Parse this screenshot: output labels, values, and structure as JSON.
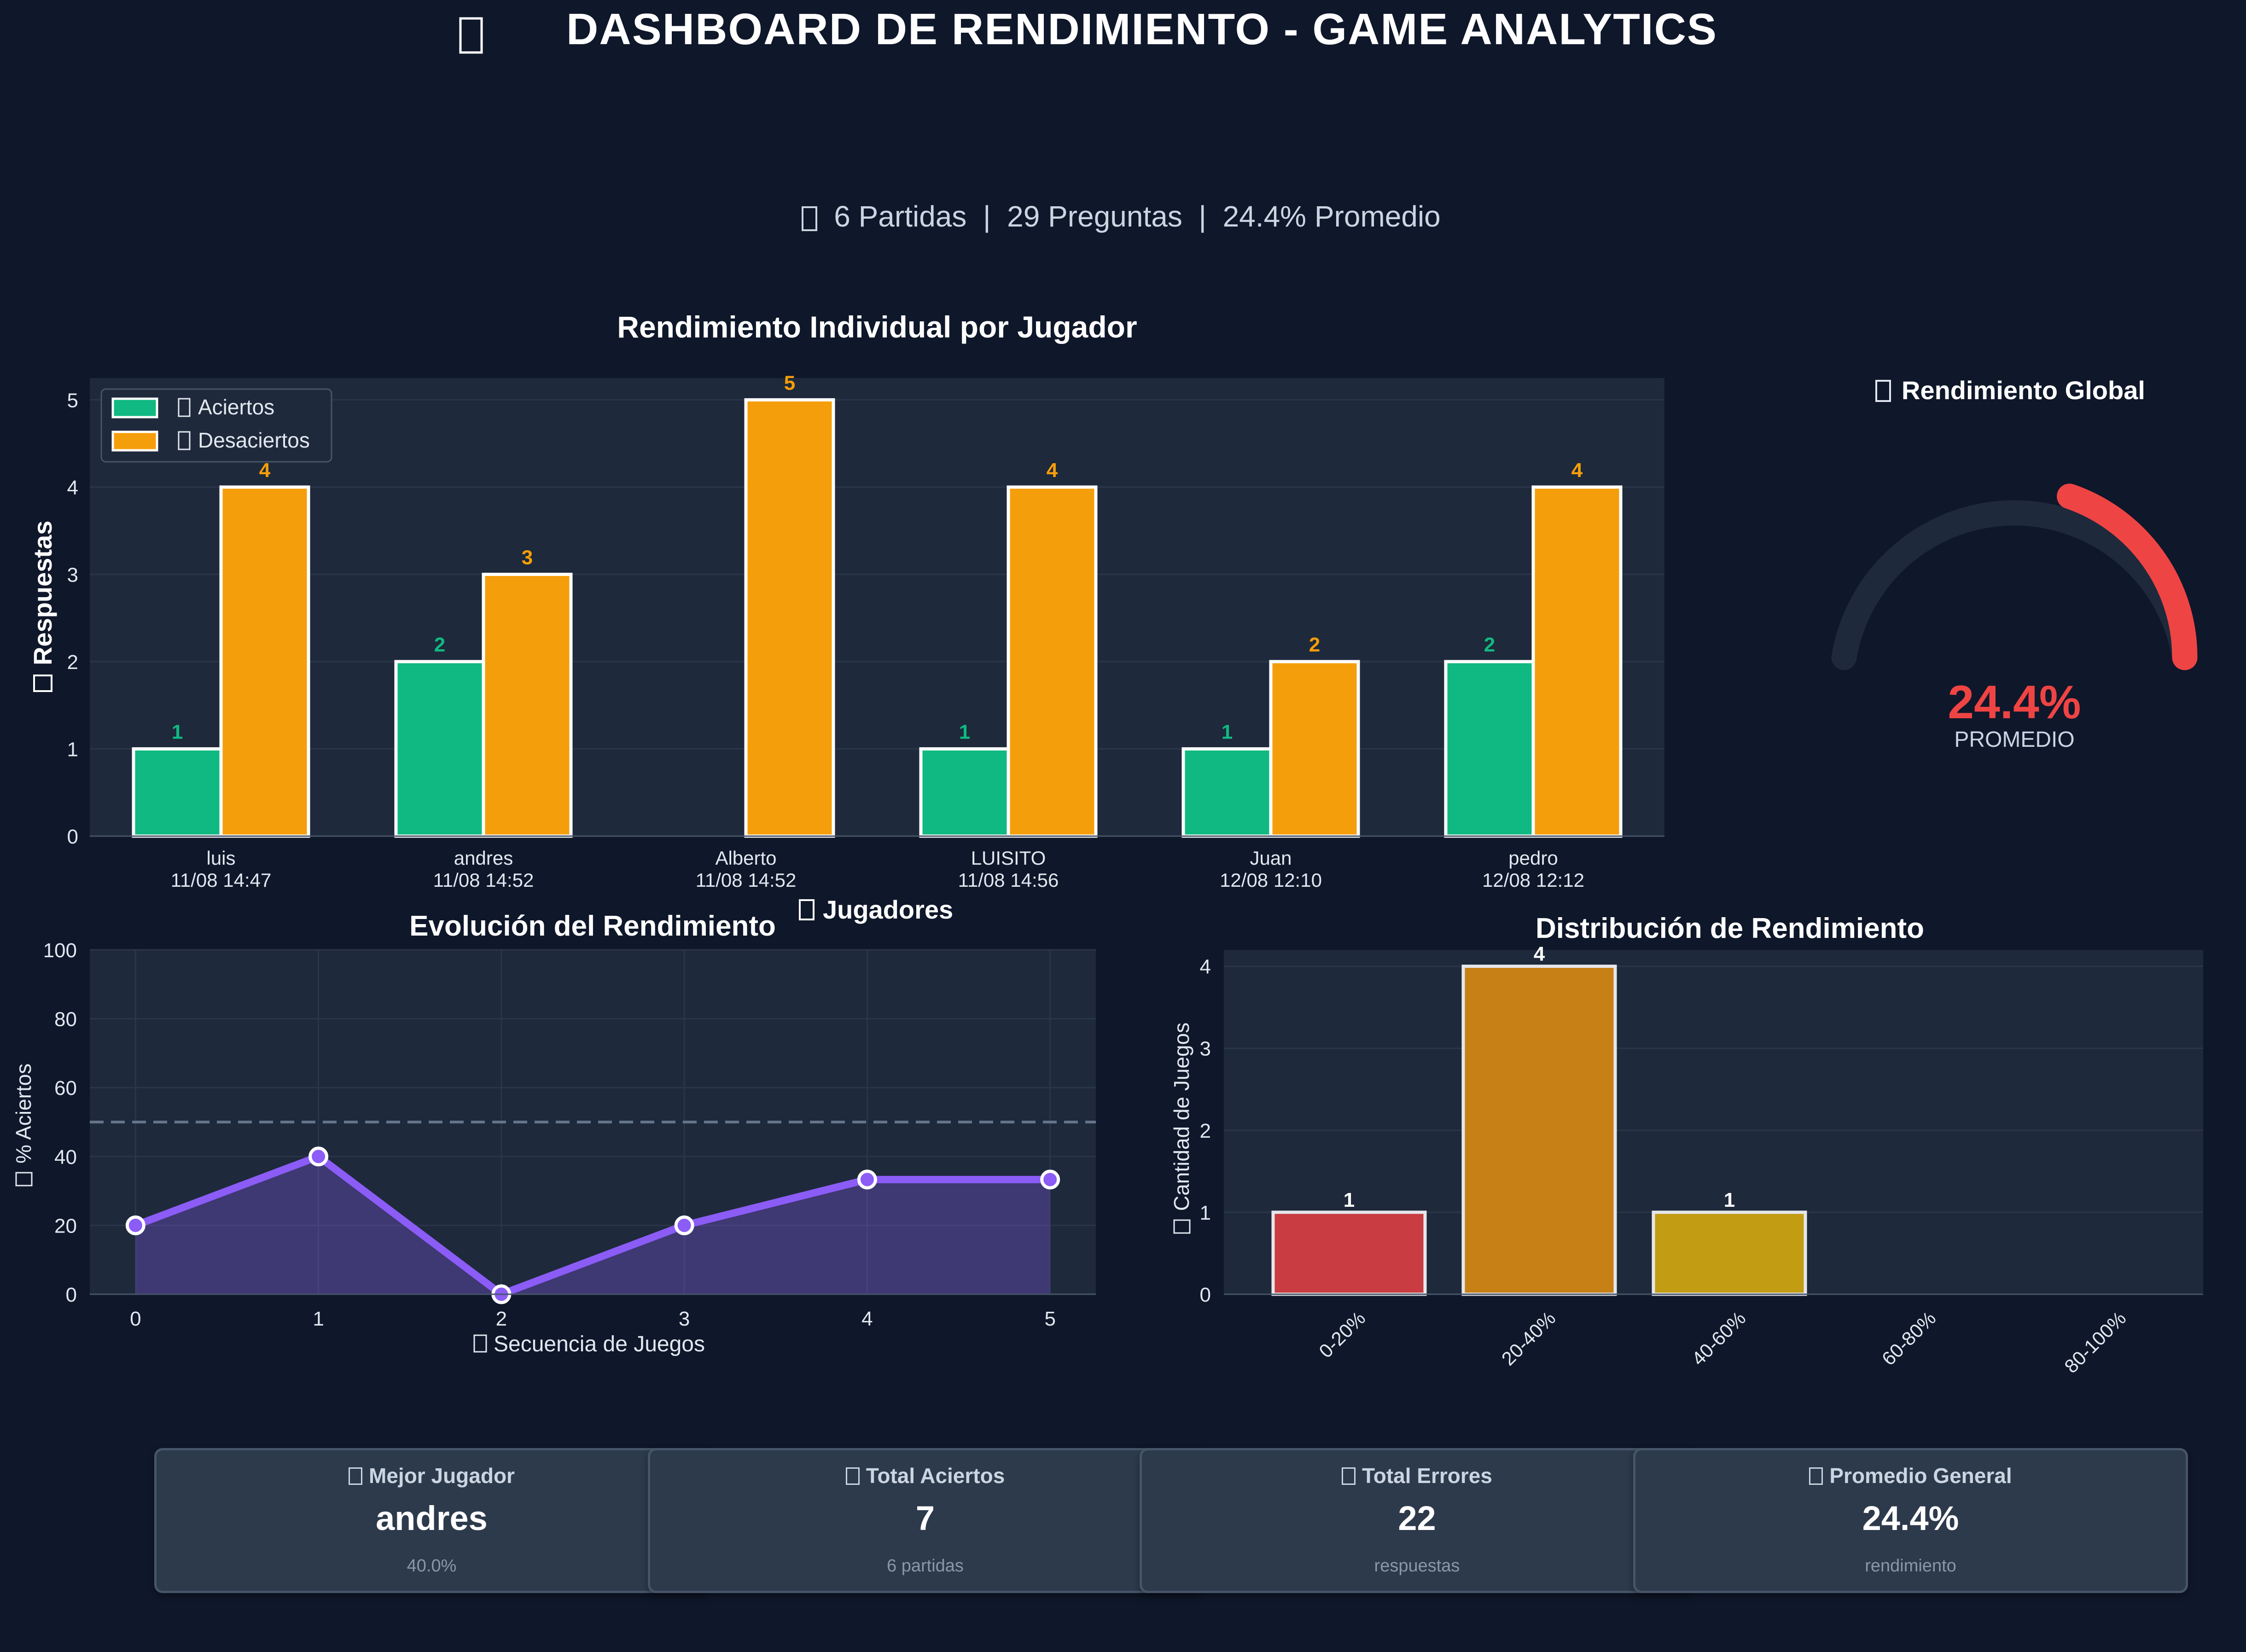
{
  "header": {
    "title": "DASHBOARD DE RENDIMIENTO - GAME ANALYTICS",
    "stats_line": "6 Partidas  |  29 Preguntas  |  24.4% Promedio"
  },
  "colors": {
    "background": "#0f172a",
    "panel": "#1e293b",
    "aciertos": "#10b981",
    "desaciertos": "#f59e0b",
    "line": "#8b5cf6",
    "gauge_low": "#ef4444",
    "dist_colors": [
      "#dc3e42",
      "#d98a12",
      "#d4a90f",
      "#22c55e",
      "#10b981"
    ]
  },
  "gauge": {
    "title": "Rendimiento Global",
    "value_label": "24.4%",
    "value": 24.4,
    "caption": "PROMEDIO"
  },
  "chart_data": [
    {
      "type": "bar",
      "title": "Rendimiento Individual por Jugador",
      "xlabel": "Jugadores",
      "ylabel": "Respuestas",
      "categories": [
        "luis\n11/08 14:47",
        "andres\n11/08 14:52",
        "Alberto\n11/08 14:52",
        "LUISITO\n11/08 14:56",
        "Juan\n12/08 12:10",
        "pedro\n12/08 12:12"
      ],
      "series": [
        {
          "name": "Aciertos",
          "values": [
            1,
            2,
            0,
            1,
            1,
            2
          ]
        },
        {
          "name": "Desaciertos",
          "values": [
            4,
            3,
            5,
            4,
            2,
            4
          ]
        }
      ],
      "ylim": [
        0,
        5.25
      ],
      "yticks": [
        0,
        1,
        2,
        3,
        4,
        5
      ],
      "legend": "top-left",
      "grid": true
    },
    {
      "type": "line",
      "title": "Evolución del Rendimiento",
      "xlabel": "Secuencia de Juegos",
      "ylabel": "% Aciertos",
      "x": [
        0,
        1,
        2,
        3,
        4,
        5
      ],
      "values": [
        20,
        40,
        0,
        20,
        33.3,
        33.3
      ],
      "reference_line": 50,
      "xlim": [
        -0.25,
        5.25
      ],
      "ylim": [
        0,
        100
      ],
      "yticks": [
        0,
        20,
        40,
        60,
        80,
        100
      ],
      "grid": true
    },
    {
      "type": "bar",
      "title": "Distribución de Rendimiento",
      "ylabel": "Cantidad de Juegos",
      "categories": [
        "0-20%",
        "20-40%",
        "40-60%",
        "60-80%",
        "80-100%"
      ],
      "values": [
        1,
        4,
        1,
        0,
        0
      ],
      "ylim": [
        0,
        4.2
      ],
      "yticks": [
        0,
        1,
        2,
        3,
        4
      ],
      "grid": true
    }
  ],
  "cards": [
    {
      "title": "Mejor Jugador",
      "value": "andres",
      "sub": "40.0%"
    },
    {
      "title": "Total Aciertos",
      "value": "7",
      "sub": "6 partidas"
    },
    {
      "title": "Total Errores",
      "value": "22",
      "sub": "respuestas"
    },
    {
      "title": "Promedio General",
      "value": "24.4%",
      "sub": "rendimiento"
    }
  ]
}
